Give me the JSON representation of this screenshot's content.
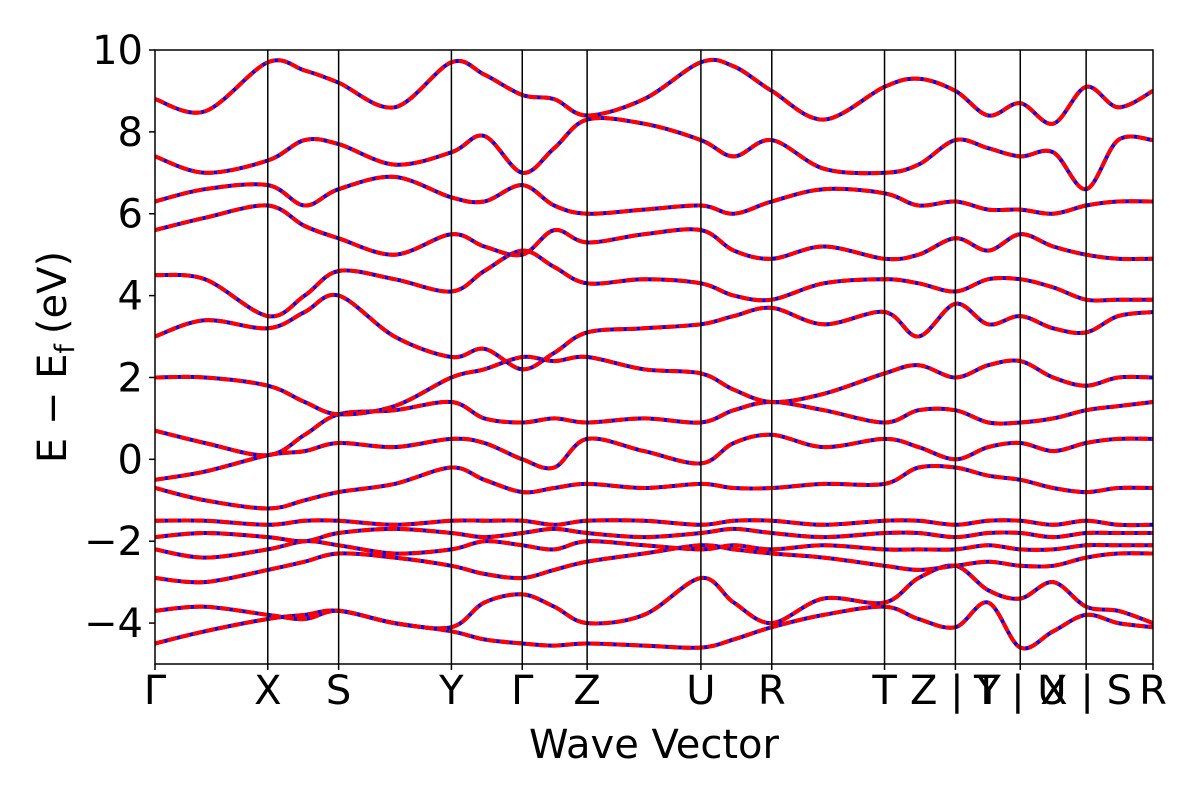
{
  "chart_data": {
    "type": "line",
    "title": "",
    "xlabel": "Wave Vector",
    "ylabel": "E − E",
    "ylabel_subscript": "f",
    "ylabel_unit": "(eV)",
    "ylim": [
      -5,
      10
    ],
    "y_ticks": [
      -4,
      -2,
      0,
      2,
      4,
      6,
      8,
      10
    ],
    "y_tick_labels": [
      "−4",
      "−2",
      "0",
      "2",
      "4",
      "6",
      "8",
      "10"
    ],
    "x_range": [
      0,
      100
    ],
    "k_points": [
      {
        "label": "Γ",
        "x": 0
      },
      {
        "label": "X",
        "x": 11.3
      },
      {
        "label": "S",
        "x": 18.4
      },
      {
        "label": "Y",
        "x": 29.7
      },
      {
        "label": "Γ",
        "x": 36.8
      },
      {
        "label": "Z",
        "x": 43.3
      },
      {
        "label": "U",
        "x": 54.7
      },
      {
        "label": "R",
        "x": 61.8
      },
      {
        "label": "T",
        "x": 73.1
      },
      {
        "label": "Z | Y",
        "x": 80.2
      },
      {
        "label": "T | U",
        "x": 86.7
      },
      {
        "label": "X | S",
        "x": 93.3
      },
      {
        "label": "R",
        "x": 100
      }
    ],
    "grid": false,
    "legend": "none",
    "colors": {
      "band_primary": "#ff0000",
      "band_secondary": "#0000ff"
    },
    "series": [
      {
        "x": [
          0,
          5,
          11.3,
          15,
          18.4,
          24,
          29.7,
          33,
          36.8,
          40,
          43.3,
          49,
          54.7,
          58,
          61.8,
          67,
          73.1,
          76.5,
          80.2,
          83.5,
          86.7,
          90,
          93.3,
          96.5,
          100
        ],
        "y": [
          -4.5,
          -4.2,
          -3.9,
          -3.8,
          -3.7,
          -4.0,
          -4.2,
          -4.4,
          -4.5,
          -4.55,
          -4.5,
          -4.55,
          -4.6,
          -4.4,
          -4.1,
          -3.8,
          -3.6,
          -3.9,
          -4.1,
          -3.5,
          -4.6,
          -4.2,
          -3.8,
          -4.0,
          -4.1
        ]
      },
      {
        "x": [
          0,
          5,
          11.3,
          15,
          18.4,
          24,
          29.7,
          33,
          36.8,
          40,
          43.3,
          49,
          54.7,
          58,
          61.8,
          67,
          73.1,
          76.5,
          80.2,
          83.5,
          86.7,
          90,
          93.3,
          96.5,
          100
        ],
        "y": [
          -3.7,
          -3.6,
          -3.8,
          -3.9,
          -3.7,
          -4.0,
          -4.1,
          -3.5,
          -3.3,
          -3.6,
          -4.0,
          -3.8,
          -2.9,
          -3.5,
          -4.0,
          -3.4,
          -3.5,
          -2.9,
          -2.6,
          -3.2,
          -3.4,
          -3.0,
          -3.6,
          -3.7,
          -4.0
        ]
      },
      {
        "x": [
          0,
          5,
          11.3,
          15,
          18.4,
          24,
          29.7,
          33,
          36.8,
          40,
          43.3,
          49,
          54.7,
          58,
          61.8,
          67,
          73.1,
          76.5,
          80.2,
          83.5,
          86.7,
          90,
          93.3,
          96.5,
          100
        ],
        "y": [
          -2.9,
          -3.0,
          -2.7,
          -2.5,
          -2.3,
          -2.4,
          -2.6,
          -2.8,
          -2.9,
          -2.7,
          -2.5,
          -2.3,
          -2.1,
          -2.2,
          -2.3,
          -2.4,
          -2.6,
          -2.7,
          -2.6,
          -2.5,
          -2.6,
          -2.6,
          -2.4,
          -2.3,
          -2.3
        ]
      },
      {
        "x": [
          0,
          5,
          11.3,
          15,
          18.4,
          24,
          29.7,
          33,
          36.8,
          40,
          43.3,
          49,
          54.7,
          58,
          61.8,
          67,
          73.1,
          76.5,
          80.2,
          83.5,
          86.7,
          90,
          93.3,
          96.5,
          100
        ],
        "y": [
          -2.2,
          -2.4,
          -2.2,
          -2.0,
          -2.1,
          -2.3,
          -2.2,
          -2.0,
          -2.1,
          -2.2,
          -2.0,
          -2.1,
          -2.2,
          -2.1,
          -2.2,
          -2.1,
          -2.2,
          -2.2,
          -2.2,
          -2.1,
          -2.2,
          -2.2,
          -2.1,
          -2.1,
          -2.1
        ]
      },
      {
        "x": [
          0,
          5,
          11.3,
          15,
          18.4,
          24,
          29.7,
          33,
          36.8,
          40,
          43.3,
          49,
          54.7,
          58,
          61.8,
          67,
          73.1,
          76.5,
          80.2,
          83.5,
          86.7,
          90,
          93.3,
          96.5,
          100
        ],
        "y": [
          -1.9,
          -1.8,
          -1.9,
          -2.0,
          -1.8,
          -1.7,
          -1.8,
          -1.9,
          -1.8,
          -1.7,
          -1.8,
          -1.9,
          -1.8,
          -1.7,
          -1.8,
          -1.9,
          -1.8,
          -1.8,
          -1.9,
          -1.8,
          -1.8,
          -1.9,
          -1.8,
          -1.8,
          -1.8
        ]
      },
      {
        "x": [
          0,
          5,
          11.3,
          15,
          18.4,
          24,
          29.7,
          33,
          36.8,
          40,
          43.3,
          49,
          54.7,
          58,
          61.8,
          67,
          73.1,
          76.5,
          80.2,
          83.5,
          86.7,
          90,
          93.3,
          96.5,
          100
        ],
        "y": [
          -1.5,
          -1.5,
          -1.6,
          -1.5,
          -1.5,
          -1.6,
          -1.5,
          -1.5,
          -1.5,
          -1.6,
          -1.5,
          -1.5,
          -1.6,
          -1.5,
          -1.5,
          -1.6,
          -1.5,
          -1.5,
          -1.6,
          -1.5,
          -1.5,
          -1.6,
          -1.5,
          -1.6,
          -1.6
        ]
      },
      {
        "x": [
          0,
          5,
          11.3,
          15,
          18.4,
          24,
          29.7,
          33,
          36.8,
          40,
          43.3,
          49,
          54.7,
          58,
          61.8,
          67,
          73.1,
          76.5,
          80.2,
          83.5,
          86.7,
          90,
          93.3,
          96.5,
          100
        ],
        "y": [
          -0.7,
          -1.0,
          -1.2,
          -1.0,
          -0.8,
          -0.6,
          -0.2,
          -0.5,
          -0.8,
          -0.7,
          -0.6,
          -0.7,
          -0.6,
          -0.7,
          -0.7,
          -0.6,
          -0.6,
          -0.2,
          -0.2,
          -0.4,
          -0.5,
          -0.7,
          -0.8,
          -0.7,
          -0.7
        ]
      },
      {
        "x": [
          0,
          5,
          11.3,
          15,
          18.4,
          24,
          29.7,
          33,
          36.8,
          40,
          43.3,
          49,
          54.7,
          58,
          61.8,
          67,
          73.1,
          76.5,
          80.2,
          83.5,
          86.7,
          90,
          93.3,
          96.5,
          100
        ],
        "y": [
          -0.5,
          -0.3,
          0.1,
          0.2,
          0.4,
          0.3,
          0.5,
          0.4,
          0.0,
          -0.2,
          0.5,
          0.2,
          -0.1,
          0.4,
          0.6,
          0.3,
          0.5,
          0.3,
          0.0,
          0.3,
          0.4,
          0.2,
          0.4,
          0.5,
          0.5
        ]
      },
      {
        "x": [
          0,
          5,
          11.3,
          15,
          18.4,
          24,
          29.7,
          33,
          36.8,
          40,
          43.3,
          49,
          54.7,
          58,
          61.8,
          67,
          73.1,
          76.5,
          80.2,
          83.5,
          86.7,
          90,
          93.3,
          96.5,
          100
        ],
        "y": [
          0.7,
          0.4,
          0.1,
          0.6,
          1.1,
          1.2,
          1.4,
          1.0,
          0.9,
          1.0,
          0.9,
          1.0,
          0.9,
          1.2,
          1.4,
          1.2,
          0.9,
          1.2,
          1.2,
          0.9,
          0.9,
          1.0,
          1.2,
          1.3,
          1.4
        ]
      },
      {
        "x": [
          0,
          5,
          11.3,
          15,
          18.4,
          24,
          29.7,
          33,
          36.8,
          40,
          43.3,
          49,
          54.7,
          58,
          61.8,
          67,
          73.1,
          76.5,
          80.2,
          83.5,
          86.7,
          90,
          93.3,
          96.5,
          100
        ],
        "y": [
          2.0,
          2.0,
          1.8,
          1.4,
          1.1,
          1.3,
          2.0,
          2.2,
          2.5,
          2.4,
          2.5,
          2.2,
          2.1,
          1.7,
          1.4,
          1.6,
          2.1,
          2.3,
          2.0,
          2.3,
          2.4,
          2.0,
          1.8,
          2.0,
          2.0
        ]
      },
      {
        "x": [
          0,
          5,
          11.3,
          15,
          18.4,
          24,
          29.7,
          33,
          36.8,
          40,
          43.3,
          49,
          54.7,
          58,
          61.8,
          67,
          73.1,
          76.5,
          80.2,
          83.5,
          86.7,
          90,
          93.3,
          96.5,
          100
        ],
        "y": [
          3.0,
          3.4,
          3.2,
          3.6,
          4.0,
          3.0,
          2.5,
          2.7,
          2.2,
          2.6,
          3.1,
          3.2,
          3.3,
          3.5,
          3.7,
          3.3,
          3.6,
          3.0,
          3.8,
          3.3,
          3.5,
          3.2,
          3.1,
          3.5,
          3.6
        ]
      },
      {
        "x": [
          0,
          5,
          11.3,
          15,
          18.4,
          24,
          29.7,
          33,
          36.8,
          40,
          43.3,
          49,
          54.7,
          58,
          61.8,
          67,
          73.1,
          76.5,
          80.2,
          83.5,
          86.7,
          90,
          93.3,
          96.5,
          100
        ],
        "y": [
          4.5,
          4.4,
          3.5,
          4.0,
          4.6,
          4.4,
          4.1,
          4.6,
          5.1,
          4.7,
          4.3,
          4.4,
          4.3,
          4.0,
          3.9,
          4.3,
          4.4,
          4.3,
          4.1,
          4.4,
          4.4,
          4.2,
          3.9,
          3.9,
          3.9
        ]
      },
      {
        "x": [
          0,
          5,
          11.3,
          15,
          18.4,
          24,
          29.7,
          33,
          36.8,
          40,
          43.3,
          49,
          54.7,
          58,
          61.8,
          67,
          73.1,
          76.5,
          80.2,
          83.5,
          86.7,
          90,
          93.3,
          96.5,
          100
        ],
        "y": [
          5.6,
          5.9,
          6.2,
          5.7,
          5.4,
          5.0,
          5.5,
          5.2,
          5.0,
          5.6,
          5.3,
          5.5,
          5.6,
          5.1,
          4.9,
          5.2,
          4.9,
          5.0,
          5.4,
          5.1,
          5.5,
          5.2,
          5.0,
          4.9,
          4.9
        ]
      },
      {
        "x": [
          0,
          5,
          11.3,
          15,
          18.4,
          24,
          29.7,
          33,
          36.8,
          40,
          43.3,
          49,
          54.7,
          58,
          61.8,
          67,
          73.1,
          76.5,
          80.2,
          83.5,
          86.7,
          90,
          93.3,
          96.5,
          100
        ],
        "y": [
          6.3,
          6.6,
          6.7,
          6.2,
          6.6,
          6.9,
          6.4,
          6.3,
          6.7,
          6.2,
          6.0,
          6.1,
          6.2,
          6.0,
          6.3,
          6.6,
          6.5,
          6.2,
          6.3,
          6.1,
          6.1,
          6.0,
          6.2,
          6.3,
          6.3
        ]
      },
      {
        "x": [
          0,
          5,
          11.3,
          15,
          18.4,
          24,
          29.7,
          33,
          36.8,
          40,
          43.3,
          49,
          54.7,
          58,
          61.8,
          67,
          73.1,
          76.5,
          80.2,
          83.5,
          86.7,
          90,
          93.3,
          96.5,
          100
        ],
        "y": [
          7.4,
          7.0,
          7.3,
          7.8,
          7.7,
          7.2,
          7.5,
          7.9,
          7.0,
          7.6,
          8.3,
          8.2,
          7.8,
          7.4,
          7.8,
          7.1,
          7.0,
          7.2,
          7.8,
          7.6,
          7.4,
          7.5,
          6.6,
          7.8,
          7.8
        ]
      },
      {
        "x": [
          0,
          5,
          11.3,
          15,
          18.4,
          24,
          29.7,
          33,
          36.8,
          40,
          43.3,
          49,
          54.7,
          58,
          61.8,
          67,
          73.1,
          76.5,
          80.2,
          83.5,
          86.7,
          90,
          93.3,
          96.5,
          100
        ],
        "y": [
          8.8,
          8.5,
          9.7,
          9.5,
          9.2,
          8.6,
          9.7,
          9.4,
          8.9,
          8.8,
          8.4,
          8.8,
          9.7,
          9.6,
          9.0,
          8.3,
          9.1,
          9.3,
          9.0,
          8.4,
          8.7,
          8.2,
          9.1,
          8.6,
          9.0
        ]
      }
    ]
  }
}
